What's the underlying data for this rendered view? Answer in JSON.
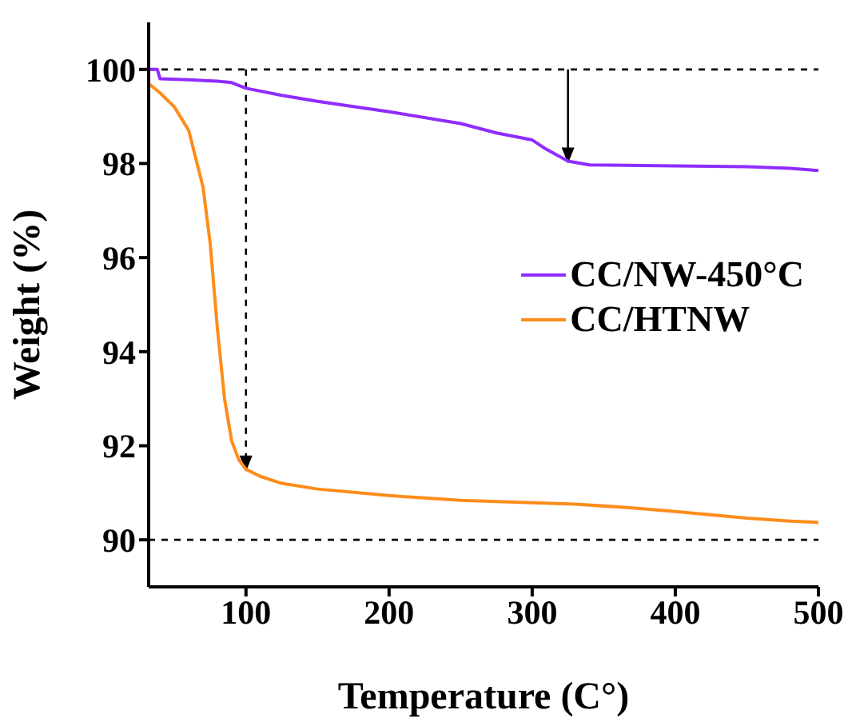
{
  "chart_data": {
    "type": "line",
    "xlabel": "Temperature (C°)",
    "ylabel": "Weight (%)",
    "xlim": [
      32,
      500
    ],
    "xticks": [
      100,
      200,
      300,
      400,
      500
    ],
    "ylim": [
      89,
      101
    ],
    "yticks": [
      90,
      92,
      94,
      96,
      98,
      100
    ],
    "grid": false,
    "legend": "right",
    "marker": "none",
    "line_style": "solid",
    "ref_lines": [
      {
        "axis": "y",
        "value": 100,
        "line_style": "dashed",
        "color": "#000000"
      },
      {
        "axis": "y",
        "value": 90,
        "line_style": "dashed",
        "color": "#000000"
      }
    ],
    "series": [
      {
        "name": "CC/NW-450°C",
        "color": "#8f2cff",
        "x": [
          32,
          38,
          40,
          60,
          80,
          90,
          100,
          125,
          150,
          200,
          250,
          275,
          300,
          310,
          325,
          340,
          400,
          450,
          480,
          500
        ],
        "values": [
          100.0,
          100.0,
          99.8,
          99.78,
          99.75,
          99.72,
          99.6,
          99.45,
          99.32,
          99.1,
          98.85,
          98.65,
          98.5,
          98.3,
          98.05,
          97.97,
          97.95,
          97.93,
          97.9,
          97.85
        ]
      },
      {
        "name": "CC/HTNW",
        "color": "#ff8c1a",
        "x": [
          32,
          40,
          50,
          60,
          70,
          75,
          80,
          85,
          90,
          95,
          100,
          110,
          125,
          150,
          200,
          250,
          300,
          330,
          370,
          400,
          450,
          480,
          500
        ],
        "values": [
          99.7,
          99.5,
          99.2,
          98.7,
          97.5,
          96.3,
          94.5,
          93.0,
          92.1,
          91.7,
          91.5,
          91.35,
          91.2,
          91.08,
          90.94,
          90.84,
          90.79,
          90.76,
          90.68,
          90.6,
          90.46,
          90.4,
          90.37
        ]
      }
    ]
  }
}
